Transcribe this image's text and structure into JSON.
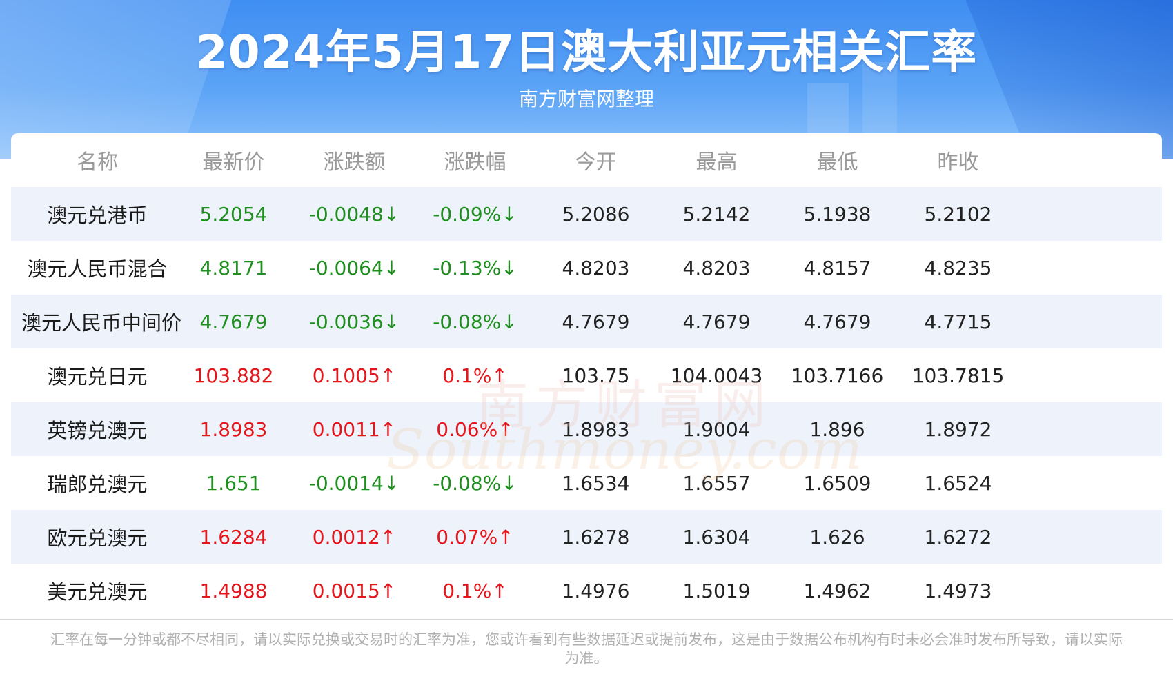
{
  "header": {
    "title": "2024年5月17日澳大利亚元相关汇率",
    "subtitle": "南方财富网整理"
  },
  "table": {
    "columns": [
      "名称",
      "最新价",
      "涨跌额",
      "涨跌幅",
      "今开",
      "最高",
      "最低",
      "昨收"
    ],
    "rows": [
      {
        "name": "澳元兑港币",
        "latest": "5.2054",
        "change": "-0.0048↓",
        "pct": "-0.09%↓",
        "open": "5.2086",
        "high": "5.2142",
        "low": "5.1938",
        "prev": "5.2102",
        "dir": "down"
      },
      {
        "name": "澳元人民币混合",
        "latest": "4.8171",
        "change": "-0.0064↓",
        "pct": "-0.13%↓",
        "open": "4.8203",
        "high": "4.8203",
        "low": "4.8157",
        "prev": "4.8235",
        "dir": "down"
      },
      {
        "name": "澳元人民币中间价",
        "latest": "4.7679",
        "change": "-0.0036↓",
        "pct": "-0.08%↓",
        "open": "4.7679",
        "high": "4.7679",
        "low": "4.7679",
        "prev": "4.7715",
        "dir": "down"
      },
      {
        "name": "澳元兑日元",
        "latest": "103.882",
        "change": "0.1005↑",
        "pct": "0.1%↑",
        "open": "103.75",
        "high": "104.0043",
        "low": "103.7166",
        "prev": "103.7815",
        "dir": "up"
      },
      {
        "name": "英镑兑澳元",
        "latest": "1.8983",
        "change": "0.0011↑",
        "pct": "0.06%↑",
        "open": "1.8983",
        "high": "1.9004",
        "low": "1.896",
        "prev": "1.8972",
        "dir": "up"
      },
      {
        "name": "瑞郎兑澳元",
        "latest": "1.651",
        "change": "-0.0014↓",
        "pct": "-0.08%↓",
        "open": "1.6534",
        "high": "1.6557",
        "low": "1.6509",
        "prev": "1.6524",
        "dir": "down"
      },
      {
        "name": "欧元兑澳元",
        "latest": "1.6284",
        "change": "0.0012↑",
        "pct": "0.07%↑",
        "open": "1.6278",
        "high": "1.6304",
        "low": "1.626",
        "prev": "1.6272",
        "dir": "up"
      },
      {
        "name": "美元兑澳元",
        "latest": "1.4988",
        "change": "0.0015↑",
        "pct": "0.1%↑",
        "open": "1.4976",
        "high": "1.5019",
        "low": "1.4962",
        "prev": "1.4973",
        "dir": "up"
      }
    ]
  },
  "watermark": {
    "cn": "南方财富网",
    "en": "Southmoney.com"
  },
  "footer": {
    "note": "汇率在每一分钟或都不尽相同，请以实际兑换或交易时的汇率为准，您或许看到有些数据延迟或提前发布，这是由于数据公布机构有时未必会准时发布所导致，请以实际为准。"
  },
  "colors": {
    "up": "#e5161b",
    "down": "#1e8e1e",
    "banner": "#4a95f3",
    "row_stripe": "#eef3fb"
  }
}
